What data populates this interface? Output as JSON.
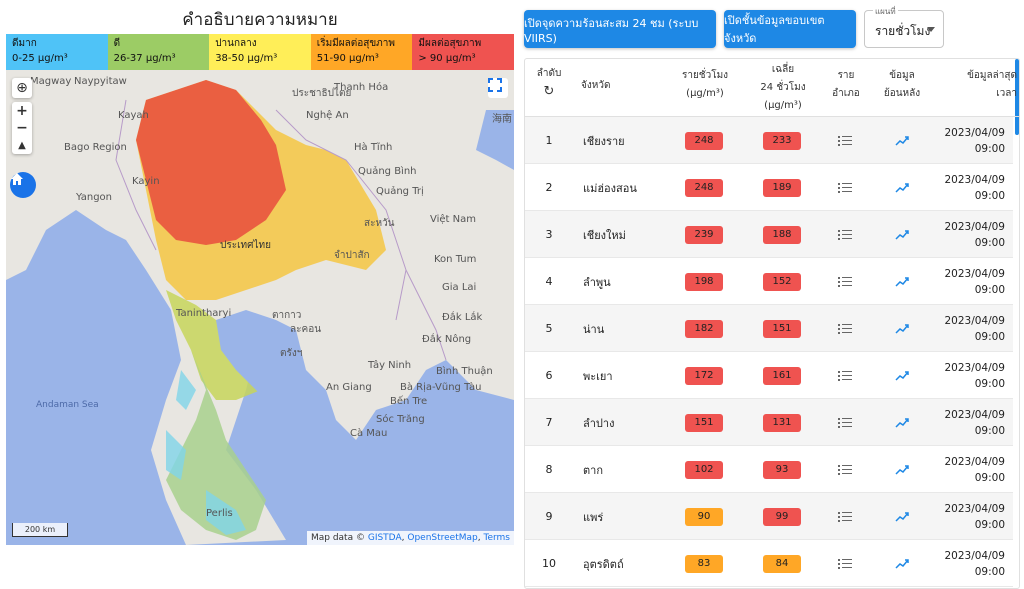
{
  "legend": {
    "title": "คำอธิบายความหมาย",
    "items": [
      {
        "label": "ดีมาก",
        "range": "0-25 µg/m³",
        "color": "#4fc3f7"
      },
      {
        "label": "ดี",
        "range": "26-37 µg/m³",
        "color": "#9ccc65"
      },
      {
        "label": "ปานกลาง",
        "range": "38-50 µg/m³",
        "color": "#ffee58"
      },
      {
        "label": "เริ่มมีผลต่อสุขภาพ",
        "range": "51-90 µg/m³",
        "color": "#ffa726"
      },
      {
        "label": "มีผลต่อสุขภาพ",
        "range": "> 90 µg/m³",
        "color": "#ef5350"
      }
    ]
  },
  "map": {
    "labels": [
      "Magway",
      "Naypyitaw",
      "Kayah",
      "Bago Region",
      "Kayin",
      "Yangon",
      "Tanintharyi",
      "Andaman Sea",
      "Thanh Hóa",
      "Nghệ An",
      "Hà Tĩnh",
      "Quảng Bình",
      "Quảng Trị",
      "Việt Nam",
      "Kon Tum",
      "Gia Lai",
      "Đắk Lắk",
      "Đắk Nông",
      "Tây Ninh",
      "Bình Thuận",
      "An Giang",
      "Bà Rịa-Vũng Tàu",
      "Bến Tre",
      "Sóc Trăng",
      "Cà Mau",
      "Perlis",
      "ประเทศไทย",
      "ประชาธิปไตย",
      "ละคอน",
      "จำปาสัก",
      "สะหวัน",
      "ตากาว",
      "ตรังฯ",
      "海南"
    ],
    "scale": "200 km",
    "attribution_prefix": "Map data ©",
    "attribution_links": [
      "GISTDA",
      "OpenStreetMap",
      "Terms"
    ]
  },
  "controls": {
    "hotspot_button": "เปิดจุดความร้อนสะสม 24 ชม (ระบบ VIIRS)",
    "boundary_button": "เปิดชั้นข้อมูลขอบเขตจังหวัด",
    "select_label": "แผนที่",
    "select_value": "รายชั่วโมง"
  },
  "table": {
    "headers": {
      "rank": "ลำดับ",
      "province": "จังหวัด",
      "hourly": "รายชั่วโมง",
      "hourly_unit": "(µg/m³)",
      "avg": "เฉลี่ย",
      "avg2": "24 ชั่วโมง",
      "avg_unit": "(µg/m³)",
      "district": "ราย",
      "district2": "อำเภอ",
      "history": "ข้อมูล",
      "history2": "ย้อนหลัง",
      "latest": "ข้อมูลล่าสุด",
      "latest2": "เวลา"
    },
    "rows": [
      {
        "rank": "1",
        "province": "เชียงราย",
        "hourly": "248",
        "avg": "233",
        "date": "2023/04/09",
        "time": "09:00",
        "hc": "#ef5350",
        "ac": "#ef5350"
      },
      {
        "rank": "2",
        "province": "แม่ฮ่องสอน",
        "hourly": "248",
        "avg": "189",
        "date": "2023/04/09",
        "time": "09:00",
        "hc": "#ef5350",
        "ac": "#ef5350"
      },
      {
        "rank": "3",
        "province": "เชียงใหม่",
        "hourly": "239",
        "avg": "188",
        "date": "2023/04/09",
        "time": "09:00",
        "hc": "#ef5350",
        "ac": "#ef5350"
      },
      {
        "rank": "4",
        "province": "ลำพูน",
        "hourly": "198",
        "avg": "152",
        "date": "2023/04/09",
        "time": "09:00",
        "hc": "#ef5350",
        "ac": "#ef5350"
      },
      {
        "rank": "5",
        "province": "น่าน",
        "hourly": "182",
        "avg": "151",
        "date": "2023/04/09",
        "time": "09:00",
        "hc": "#ef5350",
        "ac": "#ef5350"
      },
      {
        "rank": "6",
        "province": "พะเยา",
        "hourly": "172",
        "avg": "161",
        "date": "2023/04/09",
        "time": "09:00",
        "hc": "#ef5350",
        "ac": "#ef5350"
      },
      {
        "rank": "7",
        "province": "ลำปาง",
        "hourly": "151",
        "avg": "131",
        "date": "2023/04/09",
        "time": "09:00",
        "hc": "#ef5350",
        "ac": "#ef5350"
      },
      {
        "rank": "8",
        "province": "ตาก",
        "hourly": "102",
        "avg": "93",
        "date": "2023/04/09",
        "time": "09:00",
        "hc": "#ef5350",
        "ac": "#ef5350"
      },
      {
        "rank": "9",
        "province": "แพร่",
        "hourly": "90",
        "avg": "99",
        "date": "2023/04/09",
        "time": "09:00",
        "hc": "#ffa726",
        "ac": "#ef5350"
      },
      {
        "rank": "10",
        "province": "อุตรดิตถ์",
        "hourly": "83",
        "avg": "84",
        "date": "2023/04/09",
        "time": "09:00",
        "hc": "#ffa726",
        "ac": "#ffa726"
      }
    ]
  }
}
